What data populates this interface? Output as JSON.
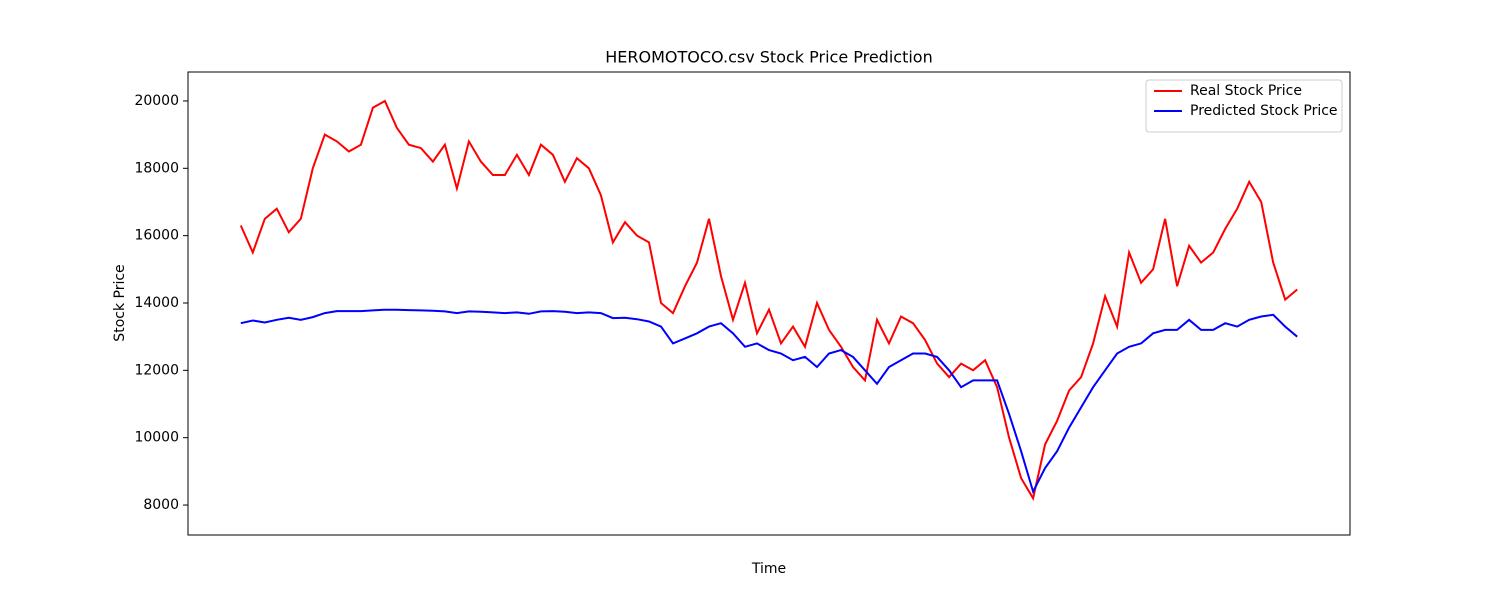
{
  "chart_data": {
    "type": "line",
    "title": "HEROMOTOCO.csv Stock Price Prediction",
    "x_label": "Time",
    "y_label": "Stock Price",
    "x": [
      0,
      12,
      24,
      36,
      48,
      60,
      72,
      84,
      96,
      108,
      120,
      132,
      144,
      156,
      168,
      180,
      192,
      204,
      216,
      228,
      240,
      252,
      264,
      276,
      288,
      300,
      312,
      324,
      336,
      348,
      360,
      372,
      384,
      396,
      408,
      420,
      432,
      444,
      456,
      468,
      480,
      492,
      504,
      516,
      528,
      540,
      552,
      564,
      576,
      588,
      600,
      612,
      624,
      636,
      648,
      660,
      672,
      684,
      696,
      708,
      720,
      732,
      744,
      756,
      768,
      780,
      792,
      804,
      816,
      828,
      840,
      852,
      864,
      876,
      888,
      900,
      912,
      924,
      936,
      948,
      960,
      972,
      984,
      996,
      1008,
      1020,
      1032,
      1044,
      1056
    ],
    "series": [
      {
        "name": "Real Stock Price",
        "color": "#ff0000",
        "values": [
          16300,
          15500,
          16500,
          16800,
          16100,
          16500,
          18000,
          19000,
          18800,
          18500,
          18700,
          19800,
          20000,
          19200,
          18700,
          18600,
          18200,
          18700,
          17400,
          18800,
          18200,
          17800,
          17800,
          18400,
          17800,
          18700,
          18400,
          17600,
          18300,
          18000,
          17200,
          15800,
          16400,
          16000,
          15800,
          14000,
          13700,
          14500,
          15200,
          16500,
          14800,
          13500,
          14600,
          13100,
          13800,
          12800,
          13300,
          12700,
          14000,
          13200,
          12700,
          12100,
          11700,
          13500,
          12800,
          13600,
          13400,
          12900,
          12200,
          11800,
          12200,
          12000,
          12300,
          11500,
          10000,
          8800,
          8200,
          9800,
          10500,
          11400,
          11800,
          12800,
          14200,
          13300,
          15500,
          14600,
          15000,
          16500,
          14500,
          15700,
          15200,
          15500,
          16200,
          16800,
          17600,
          17000,
          15200,
          14100,
          14400
        ]
      },
      {
        "name": "Predicted Stock Price",
        "color": "#0000ff",
        "values": [
          13400,
          13480,
          13420,
          13500,
          13560,
          13500,
          13580,
          13700,
          13760,
          13760,
          13760,
          13780,
          13800,
          13800,
          13790,
          13780,
          13770,
          13750,
          13700,
          13750,
          13740,
          13720,
          13700,
          13720,
          13680,
          13750,
          13760,
          13740,
          13700,
          13720,
          13700,
          13550,
          13560,
          13520,
          13450,
          13300,
          12800,
          12950,
          13100,
          13300,
          13400,
          13100,
          12700,
          12800,
          12600,
          12500,
          12300,
          12400,
          12100,
          12500,
          12600,
          12400,
          12000,
          11600,
          12100,
          12300,
          12500,
          12500,
          12400,
          12000,
          11500,
          11700,
          11700,
          11700,
          10700,
          9600,
          8400,
          9100,
          9600,
          10300,
          10900,
          11500,
          12000,
          12500,
          12700,
          12800,
          13100,
          13200,
          13200,
          13500,
          13200,
          13200,
          13400,
          13300,
          13500,
          13600,
          13650,
          13300,
          13000
        ]
      }
    ],
    "xlim": [
      -52.8,
      1108.8
    ],
    "ylim": [
      7110,
      20860
    ],
    "yticks": [
      8000,
      10000,
      12000,
      14000,
      16000,
      18000,
      20000
    ],
    "legend": "upper right",
    "grid": false
  }
}
